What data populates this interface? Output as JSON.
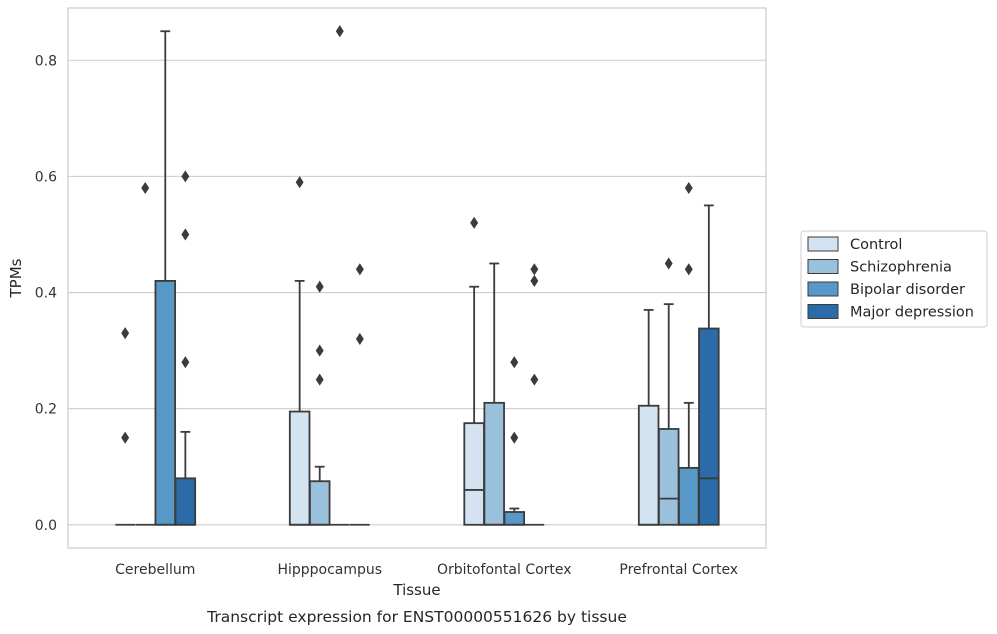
{
  "chart_data": {
    "type": "box",
    "xlabel": "Tissue",
    "ylabel": "TPMs",
    "caption": "Transcript expression for ENST00000551626 by tissue",
    "ylim": [
      -0.04,
      0.89
    ],
    "yticks": [
      0.0,
      0.2,
      0.4,
      0.6,
      0.8
    ],
    "ytick_labels": [
      "0.0",
      "0.2",
      "0.4",
      "0.6",
      "0.8"
    ],
    "grid": "horizontal",
    "legend_position": "right",
    "categories": [
      "Cerebellum",
      "Hipppocampus",
      "Orbitofontal Cortex",
      "Prefrontal Cortex"
    ],
    "series": [
      {
        "name": "Control",
        "color": "#d4e3f2",
        "boxes": [
          {
            "q1": 0,
            "median": 0,
            "q3": 0,
            "whisker_low": 0,
            "whisker_high": 0,
            "outliers": [
              0.15,
              0.33
            ]
          },
          {
            "q1": 0,
            "median": 0,
            "q3": 0.195,
            "whisker_low": 0,
            "whisker_high": 0.42,
            "outliers": [
              0.59
            ]
          },
          {
            "q1": 0,
            "median": 0.06,
            "q3": 0.175,
            "whisker_low": 0,
            "whisker_high": 0.41,
            "outliers": [
              0.52
            ]
          },
          {
            "q1": 0,
            "median": 0,
            "q3": 0.205,
            "whisker_low": 0,
            "whisker_high": 0.37,
            "outliers": []
          }
        ]
      },
      {
        "name": "Schizophrenia",
        "color": "#9ac1db",
        "boxes": [
          {
            "q1": 0,
            "median": 0,
            "q3": 0,
            "whisker_low": 0,
            "whisker_high": 0,
            "outliers": [
              0.58
            ]
          },
          {
            "q1": 0,
            "median": 0,
            "q3": 0.075,
            "whisker_low": 0,
            "whisker_high": 0.1,
            "outliers": [
              0.25,
              0.3,
              0.41
            ]
          },
          {
            "q1": 0,
            "median": 0,
            "q3": 0.21,
            "whisker_low": 0,
            "whisker_high": 0.45,
            "outliers": []
          },
          {
            "q1": 0,
            "median": 0.045,
            "q3": 0.165,
            "whisker_low": 0,
            "whisker_high": 0.38,
            "outliers": [
              0.45
            ]
          }
        ]
      },
      {
        "name": "Bipolar disorder",
        "color": "#5798c6",
        "boxes": [
          {
            "q1": 0,
            "median": 0,
            "q3": 0.42,
            "whisker_low": 0,
            "whisker_high": 0.85,
            "outliers": []
          },
          {
            "q1": 0,
            "median": 0,
            "q3": 0,
            "whisker_low": 0,
            "whisker_high": 0,
            "outliers": [
              0.85
            ]
          },
          {
            "q1": 0,
            "median": 0,
            "q3": 0.022,
            "whisker_low": 0,
            "whisker_high": 0.028,
            "outliers": [
              0.15,
              0.28
            ]
          },
          {
            "q1": 0,
            "median": 0,
            "q3": 0.098,
            "whisker_low": 0,
            "whisker_high": 0.21,
            "outliers": [
              0.44,
              0.58
            ]
          }
        ]
      },
      {
        "name": "Major depression",
        "color": "#2b6ba8",
        "boxes": [
          {
            "q1": 0,
            "median": 0,
            "q3": 0.08,
            "whisker_low": 0,
            "whisker_high": 0.16,
            "outliers": [
              0.28,
              0.5,
              0.6
            ]
          },
          {
            "q1": 0,
            "median": 0,
            "q3": 0,
            "whisker_low": 0,
            "whisker_high": 0,
            "outliers": [
              0.32,
              0.44
            ]
          },
          {
            "q1": 0,
            "median": 0,
            "q3": 0,
            "whisker_low": 0,
            "whisker_high": 0,
            "outliers": [
              0.25,
              0.42,
              0.44
            ]
          },
          {
            "q1": 0,
            "median": 0.08,
            "q3": 0.338,
            "whisker_low": 0,
            "whisker_high": 0.55,
            "outliers": []
          }
        ]
      }
    ]
  }
}
